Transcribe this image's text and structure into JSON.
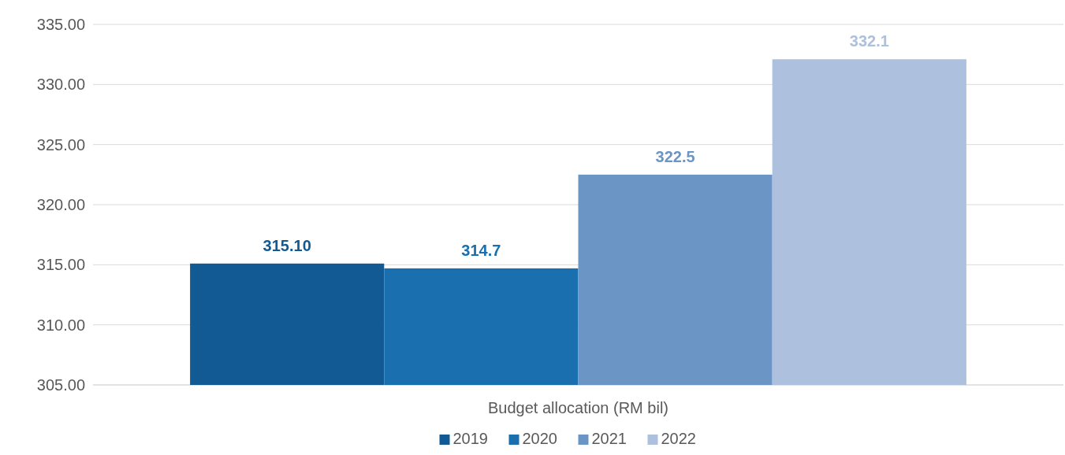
{
  "chart_data": {
    "type": "bar",
    "categories": [
      "Budget allocation (RM bil)"
    ],
    "series": [
      {
        "name": "2019",
        "color": "#125a93",
        "values": [
          315.1
        ],
        "value_labels": [
          "315.10"
        ]
      },
      {
        "name": "2020",
        "color": "#1a6faf",
        "values": [
          314.7
        ],
        "value_labels": [
          "314.7"
        ]
      },
      {
        "name": "2021",
        "color": "#6a95c5",
        "values": [
          322.5
        ],
        "value_labels": [
          "322.5"
        ]
      },
      {
        "name": "2022",
        "color": "#adc0dd",
        "values": [
          332.1
        ],
        "value_labels": [
          "332.1"
        ]
      }
    ],
    "ylim": [
      305,
      335
    ],
    "yticks": [
      {
        "value": 305,
        "label": "305.00"
      },
      {
        "value": 310,
        "label": "310.00"
      },
      {
        "value": 315,
        "label": "315.00"
      },
      {
        "value": 320,
        "label": "320.00"
      },
      {
        "value": 325,
        "label": "325.00"
      },
      {
        "value": 330,
        "label": "330.00"
      },
      {
        "value": 335,
        "label": "335.00"
      }
    ],
    "grid": "y",
    "legend": "bottom"
  }
}
